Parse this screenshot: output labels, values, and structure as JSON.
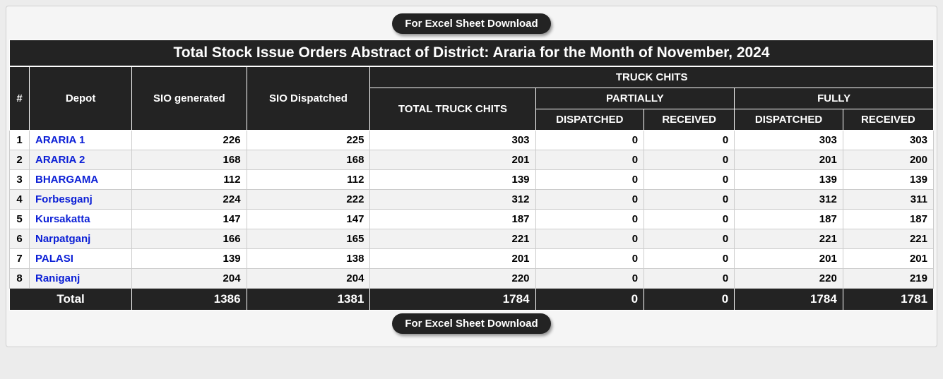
{
  "download_label": "For Excel Sheet Download",
  "title": "Total Stock Issue Orders Abstract of District: Araria for the Month of November, 2024",
  "headers": {
    "idx": "#",
    "depot": "Depot",
    "sio_gen": "SIO generated",
    "sio_disp": "SIO Dispatched",
    "truck_chits": "TRUCK CHITS",
    "total_tc": "TOTAL TRUCK CHITS",
    "partially": "PARTIALLY",
    "fully": "FULLY",
    "dispatched": "DISPATCHED",
    "received": "RECEIVED"
  },
  "rows": [
    {
      "idx": "1",
      "depot": "ARARIA 1",
      "sio_gen": "226",
      "sio_disp": "225",
      "total_tc": "303",
      "p_disp": "0",
      "p_recv": "0",
      "f_disp": "303",
      "f_recv": "303"
    },
    {
      "idx": "2",
      "depot": "ARARIA 2",
      "sio_gen": "168",
      "sio_disp": "168",
      "total_tc": "201",
      "p_disp": "0",
      "p_recv": "0",
      "f_disp": "201",
      "f_recv": "200"
    },
    {
      "idx": "3",
      "depot": "BHARGAMA",
      "sio_gen": "112",
      "sio_disp": "112",
      "total_tc": "139",
      "p_disp": "0",
      "p_recv": "0",
      "f_disp": "139",
      "f_recv": "139"
    },
    {
      "idx": "4",
      "depot": "Forbesganj",
      "sio_gen": "224",
      "sio_disp": "222",
      "total_tc": "312",
      "p_disp": "0",
      "p_recv": "0",
      "f_disp": "312",
      "f_recv": "311"
    },
    {
      "idx": "5",
      "depot": "Kursakatta",
      "sio_gen": "147",
      "sio_disp": "147",
      "total_tc": "187",
      "p_disp": "0",
      "p_recv": "0",
      "f_disp": "187",
      "f_recv": "187"
    },
    {
      "idx": "6",
      "depot": "Narpatganj",
      "sio_gen": "166",
      "sio_disp": "165",
      "total_tc": "221",
      "p_disp": "0",
      "p_recv": "0",
      "f_disp": "221",
      "f_recv": "221"
    },
    {
      "idx": "7",
      "depot": "PALASI",
      "sio_gen": "139",
      "sio_disp": "138",
      "total_tc": "201",
      "p_disp": "0",
      "p_recv": "0",
      "f_disp": "201",
      "f_recv": "201"
    },
    {
      "idx": "8",
      "depot": "Raniganj",
      "sio_gen": "204",
      "sio_disp": "204",
      "total_tc": "220",
      "p_disp": "0",
      "p_recv": "0",
      "f_disp": "220",
      "f_recv": "219"
    }
  ],
  "totals": {
    "label": "Total",
    "sio_gen": "1386",
    "sio_disp": "1381",
    "total_tc": "1784",
    "p_disp": "0",
    "p_recv": "0",
    "f_disp": "1784",
    "f_recv": "1781"
  },
  "styling": {
    "header_bg": "#232323",
    "header_fg": "#ffffff",
    "row_even_bg": "#f2f2f2",
    "row_odd_bg": "#ffffff",
    "cell_border": "#cccccc",
    "header_border": "#ffffff",
    "link_color": "#0b1fd6",
    "page_bg": "#ececec",
    "panel_bg": "#f5f5f5",
    "font_family": "Segoe UI / Verdana"
  }
}
